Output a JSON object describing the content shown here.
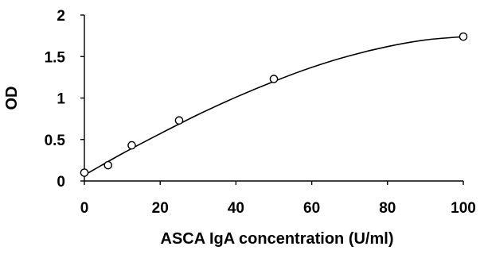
{
  "chart_data": {
    "type": "scatter",
    "title": "",
    "xlabel": "ASCA IgA concentration (U/ml)",
    "ylabel": "OD",
    "xlim": [
      0,
      100
    ],
    "ylim": [
      0,
      2
    ],
    "xticks": [
      0,
      20,
      40,
      60,
      80,
      100
    ],
    "yticks": [
      0,
      0.5,
      1,
      1.5,
      2
    ],
    "xtick_labels": [
      "0",
      "20",
      "40",
      "60",
      "80",
      "100"
    ],
    "ytick_labels": [
      "0",
      "0.5",
      "1",
      "1.5",
      "2"
    ],
    "grid": false,
    "legend": "none",
    "series": [
      {
        "x": [
          0,
          6.25,
          12.5,
          25,
          50,
          100
        ],
        "y": [
          0.1,
          0.19,
          0.43,
          0.73,
          1.23,
          1.74
        ],
        "marker": "open-circle",
        "color": "#000000"
      }
    ],
    "fit_curve": {
      "type": "smooth-fit",
      "x": [
        0,
        10,
        20,
        30,
        40,
        50,
        60,
        70,
        80,
        90,
        100
      ],
      "y": [
        0.07,
        0.33,
        0.57,
        0.8,
        1.01,
        1.2,
        1.37,
        1.51,
        1.62,
        1.7,
        1.74
      ],
      "color": "#000000"
    }
  }
}
